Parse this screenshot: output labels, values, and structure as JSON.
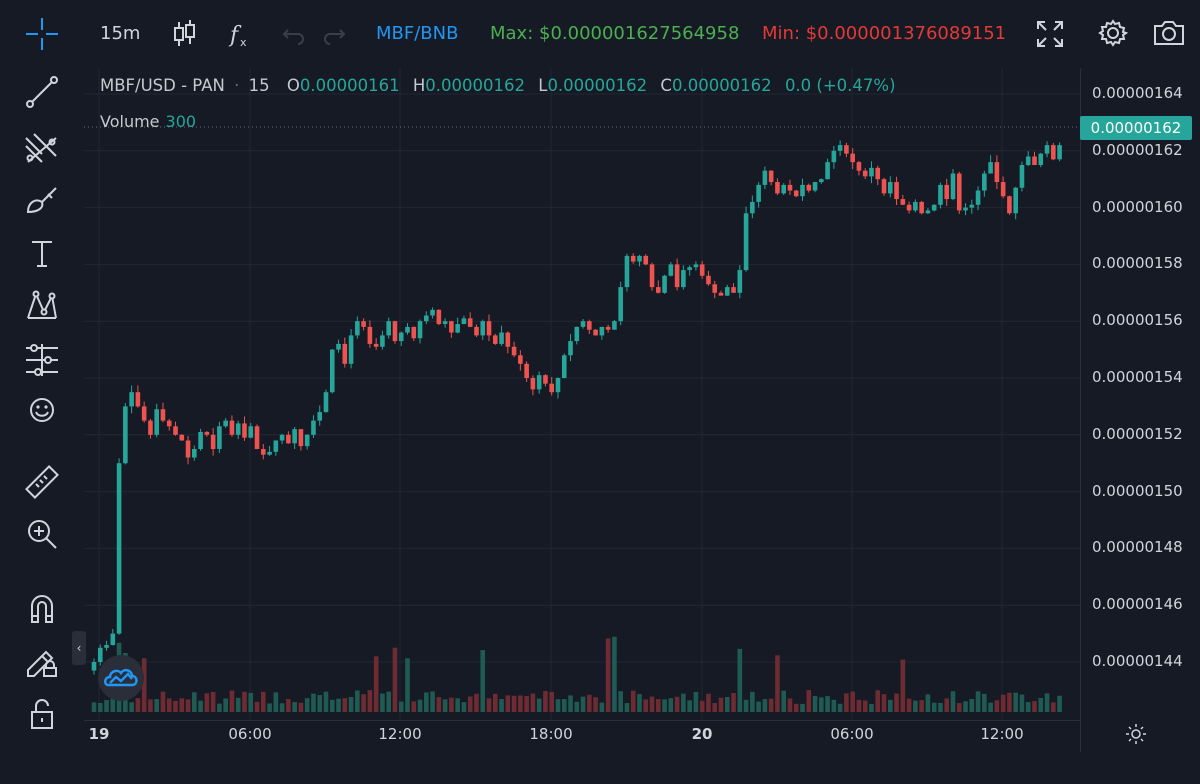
{
  "toolbar": {
    "interval": "15m",
    "pair": "MBF/BNB",
    "max": "Max: $0.000001627564958",
    "min": "Min: $0.000001376089151"
  },
  "legend": {
    "symbol": "MBF/USD - PAN",
    "interval": "15",
    "o_label": "O",
    "o_value": "0.00000161",
    "h_label": "H",
    "h_value": "0.00000162",
    "l_label": "L",
    "l_value": "0.00000162",
    "c_label": "C",
    "c_value": "0.00000162",
    "change": "0.0 (+0.47%)",
    "volume_label": "Volume",
    "volume_value": "300"
  },
  "price_axis": {
    "ticks": [
      "0.00000164",
      "0.00000162",
      "0.00000160",
      "0.00000158",
      "0.00000156",
      "0.00000154",
      "0.00000152",
      "0.00000150",
      "0.00000148",
      "0.00000146",
      "0.00000144"
    ],
    "last_price": "0.00000162"
  },
  "time_axis": {
    "ticks": [
      "19",
      "06:00",
      "12:00",
      "18:00",
      "20",
      "06:00",
      "12:00"
    ]
  },
  "colors": {
    "up": "#26a69a",
    "down": "#ef5350",
    "pair": "#2196f3",
    "max": "#4caf50",
    "min": "#e53935"
  },
  "icons": [
    "crosshair-icon",
    "candlestick-icon",
    "function-icon",
    "undo-icon",
    "redo-icon",
    "fullscreen-icon",
    "gear-icon",
    "camera-icon",
    "trendline-icon",
    "fibonacci-icon",
    "brush-icon",
    "text-icon",
    "pattern-icon",
    "forecast-icon",
    "emoji-icon",
    "ruler-icon",
    "zoom-icon",
    "magnet-icon",
    "lock-pencil-icon",
    "lock-icon",
    "settings-small-icon"
  ],
  "chart_data": {
    "type": "candlestick",
    "title": "MBF/USD - PAN",
    "interval": "15",
    "ylim": [
      1.43e-06,
      1.65e-06
    ],
    "x_ticks": [
      "19",
      "06:00",
      "12:00",
      "18:00",
      "20",
      "06:00",
      "12:00"
    ],
    "close": [
      1.44,
      1.445,
      1.446,
      1.45,
      1.51,
      1.53,
      1.535,
      1.53,
      1.525,
      1.52,
      1.529,
      1.525,
      1.523,
      1.52,
      1.518,
      1.512,
      1.515,
      1.521,
      1.52,
      1.515,
      1.523,
      1.525,
      1.52,
      1.524,
      1.519,
      1.523,
      1.515,
      1.513,
      1.514,
      1.518,
      1.52,
      1.517,
      1.522,
      1.516,
      1.52,
      1.525,
      1.528,
      1.535,
      1.55,
      1.552,
      1.545,
      1.555,
      1.56,
      1.558,
      1.552,
      1.551,
      1.555,
      1.56,
      1.553,
      1.556,
      1.558,
      1.554,
      1.56,
      1.562,
      1.564,
      1.559,
      1.56,
      1.556,
      1.559,
      1.561,
      1.558,
      1.555,
      1.56,
      1.555,
      1.552,
      1.556,
      1.551,
      1.548,
      1.545,
      1.54,
      1.536,
      1.541,
      1.538,
      1.535,
      1.54,
      1.548,
      1.553,
      1.558,
      1.56,
      1.557,
      1.555,
      1.558,
      1.557,
      1.56,
      1.572,
      1.583,
      1.581,
      1.583,
      1.58,
      1.572,
      1.57,
      1.576,
      1.58,
      1.572,
      1.578,
      1.579,
      1.58,
      1.576,
      1.573,
      1.57,
      1.569,
      1.572,
      1.57,
      1.578,
      1.598,
      1.602,
      1.608,
      1.613,
      1.609,
      1.605,
      1.608,
      1.606,
      1.604,
      1.608,
      1.606,
      1.609,
      1.61,
      1.616,
      1.62,
      1.622,
      1.619,
      1.616,
      1.613,
      1.611,
      1.614,
      1.61,
      1.605,
      1.609,
      1.603,
      1.601,
      1.599,
      1.602,
      1.598,
      1.599,
      1.601,
      1.608,
      1.603,
      1.612,
      1.599,
      1.6,
      1.601,
      1.606,
      1.612,
      1.616,
      1.609,
      1.604,
      1.598,
      1.607,
      1.615,
      1.618,
      1.615,
      1.619,
      1.622,
      1.617,
      1.622
    ],
    "volume_max": 100
  }
}
